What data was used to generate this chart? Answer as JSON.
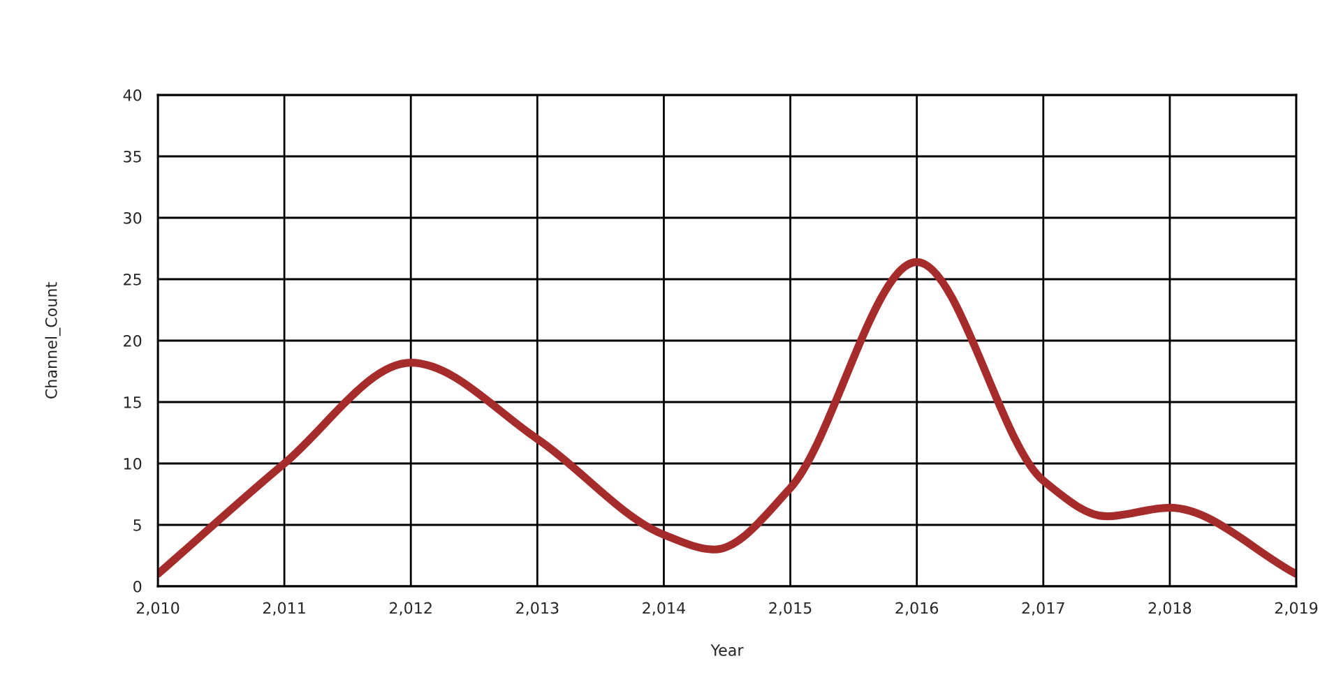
{
  "chart_data": {
    "type": "line",
    "xlabel": "Year",
    "ylabel": "Channel_Count",
    "series": [
      {
        "color": "#a62b2b",
        "x": [
          2010,
          2011,
          2012,
          2013,
          2014,
          2014.4,
          2015,
          2016,
          2017,
          2017.5,
          2018,
          2019
        ],
        "values": [
          1,
          10,
          18.2,
          12,
          4.2,
          3,
          8,
          26.4,
          8.6,
          5.7,
          6.4,
          1
        ]
      }
    ],
    "xlim": [
      2010,
      2019
    ],
    "xticks": [
      {
        "value": 2010,
        "label": "2,010"
      },
      {
        "value": 2011,
        "label": "2,011"
      },
      {
        "value": 2012,
        "label": "2,012"
      },
      {
        "value": 2013,
        "label": "2,013"
      },
      {
        "value": 2014,
        "label": "2,014"
      },
      {
        "value": 2015,
        "label": "2,015"
      },
      {
        "value": 2016,
        "label": "2,016"
      },
      {
        "value": 2017,
        "label": "2,017"
      },
      {
        "value": 2018,
        "label": "2,018"
      },
      {
        "value": 2019,
        "label": "2,019"
      }
    ],
    "ylim": [
      0,
      40
    ],
    "yticks": [
      0,
      5,
      10,
      15,
      20,
      25,
      30,
      35,
      40
    ],
    "grid": true,
    "legend": false,
    "marker": "none",
    "line_style": "solid"
  }
}
